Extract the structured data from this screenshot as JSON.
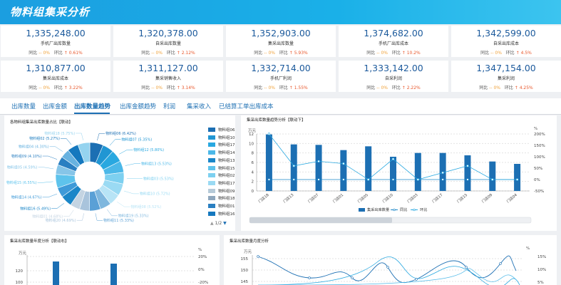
{
  "header": {
    "title": "物料组集采分析"
  },
  "cards": [
    {
      "value": "1,335,248.00",
      "label": "手机厂出库数量",
      "yoy_label": "同比",
      "yoy": "-- 0%",
      "mom_label": "环比",
      "mom": "↑ 0.61%"
    },
    {
      "value": "1,320,378.00",
      "label": "自采出库数量",
      "yoy_label": "同比",
      "yoy": "-- 0%",
      "mom_label": "环比",
      "mom": "↑ 2.12%"
    },
    {
      "value": "1,352,903.00",
      "label": "集采出库数量",
      "yoy_label": "同比",
      "yoy": "-- 0%",
      "mom_label": "环比",
      "mom": "↑ 5.93%"
    },
    {
      "value": "1,374,682.00",
      "label": "手机厂出库成本",
      "yoy_label": "同比",
      "yoy": "-- 0%",
      "mom_label": "环比",
      "mom": "↑ 10.2%"
    },
    {
      "value": "1,342,599.00",
      "label": "自采出库成本",
      "yoy_label": "同比",
      "yoy": "-- 0%",
      "mom_label": "环比",
      "mom": "↑ 4.5%"
    },
    {
      "value": "1,310,877.00",
      "label": "集采出库成本",
      "yoy_label": "同比",
      "yoy": "-- 0%",
      "mom_label": "环比",
      "mom": "↑ 3.22%"
    },
    {
      "value": "1,311,127.00",
      "label": "集采销售收入",
      "yoy_label": "同比",
      "yoy": "-- 0%",
      "mom_label": "环比",
      "mom": "↑ 3.14%"
    },
    {
      "value": "1,332,714.00",
      "label": "手机厂利润",
      "yoy_label": "同比",
      "yoy": "-- 0%",
      "mom_label": "环比",
      "mom": "↑ 1.55%"
    },
    {
      "value": "1,333,142.00",
      "label": "自采利润",
      "yoy_label": "同比",
      "yoy": "-- 0%",
      "mom_label": "环比",
      "mom": "↑ 2.22%"
    },
    {
      "value": "1,347,154.00",
      "label": "集采利润",
      "yoy_label": "同比",
      "yoy": "-- 0%",
      "mom_label": "环比",
      "mom": "↑ 4.25%"
    }
  ],
  "tabs": [
    "出库数量",
    "出库金额",
    "出库数量趋势",
    "出库金额趋势",
    "利润",
    "集采收入",
    "已结算工单出库成本"
  ],
  "active_tab": 2,
  "colors": {
    "accent": "#1c6fb3",
    "bar": "#1c6fb3",
    "line": "#29a8e0"
  },
  "donut": {
    "title": "各物料组集采出库数量占比【联动】",
    "slices": [
      {
        "label": "物料组06 (6.42%)",
        "value": 6.42
      },
      {
        "label": "物料组07 (5.35%)",
        "value": 5.35
      },
      {
        "label": "物料组12 (5.80%)",
        "value": 5.8
      },
      {
        "label": "物料组13 (5.53%)",
        "value": 5.53
      },
      {
        "label": "物料组03 (5.53%)",
        "value": 5.53
      },
      {
        "label": "物料组10 (5.72%)",
        "value": 5.72
      },
      {
        "label": "物料组08 (5.52%)",
        "value": 5.52
      },
      {
        "label": "物料组19 (5.33%)",
        "value": 5.33
      },
      {
        "label": "物料组11 (5.33%)",
        "value": 5.33
      },
      {
        "label": "物料组20 (4.69%)",
        "value": 4.69
      },
      {
        "label": "物料组01 (4.68%)",
        "value": 4.68
      },
      {
        "label": "物料组16 (5.49%)",
        "value": 5.49
      },
      {
        "label": "物料组14 (4.67%)",
        "value": 4.67
      },
      {
        "label": "物料组15 (6.55%)",
        "value": 6.55
      },
      {
        "label": "物料组05 (4.59%)",
        "value": 4.59
      },
      {
        "label": "物料组09 (4.10%)",
        "value": 4.1
      },
      {
        "label": "物料组04 (4.30%)",
        "value": 4.3
      },
      {
        "label": "物料组02 (5.27%)",
        "value": 5.27
      },
      {
        "label": "物料组18 (5.75%)",
        "value": 5.75
      }
    ],
    "legend": [
      "物料组06",
      "物料组10",
      "物料组17",
      "物料组14",
      "物料组13",
      "物料组15",
      "物料组02",
      "物料组17",
      "物料组09",
      "物料组18",
      "物料组01",
      "物料组16"
    ],
    "legend_colors": [
      "#1c6fb3",
      "#2196d3",
      "#29a8e0",
      "#4cb8e8",
      "#1a86c8",
      "#5ec3ec",
      "#7dd0f0",
      "#9adaf3",
      "#b6cad8",
      "#8fa7bd",
      "#2a7fc1",
      "#1578be"
    ],
    "pager": "1/2"
  },
  "bar_chart": {
    "title": "集采出库数量趋势分析【联动下】",
    "categories": [
      "门店18",
      "门店13",
      "门店07",
      "门店01",
      "门店05",
      "门店10",
      "门店03",
      "门店17",
      "门店15",
      "门店09",
      "门店04"
    ],
    "values": [
      11.9,
      9.8,
      9.7,
      8.6,
      9.4,
      7.2,
      8.0,
      8.0,
      7.5,
      6.2,
      5.7
    ],
    "yoy": [
      0,
      0,
      0,
      0,
      0,
      0,
      0,
      0,
      0,
      0,
      0
    ],
    "mom": [
      200,
      60,
      80,
      70,
      0,
      90,
      0,
      30,
      60,
      0,
      0
    ],
    "y_unit": "万元",
    "y_ticks": [
      "12",
      "10",
      "8",
      "6",
      "4",
      "2",
      "0"
    ],
    "y2_unit": "%",
    "y2_ticks": [
      "200%",
      "150%",
      "100%",
      "50%",
      "0%",
      "-50%"
    ],
    "legend": [
      "集采出库数量",
      "同比",
      "环比"
    ]
  },
  "bottom_left": {
    "title": "集采出库数量年度分析【联动右】",
    "y_unit": "万元",
    "y2_unit": "%",
    "y_ticks": [
      "120",
      "100"
    ],
    "y2_ticks": [
      "20%",
      "0%",
      "-20%"
    ]
  },
  "bottom_right": {
    "title": "集采出库数量月度分析",
    "y_unit": "万元",
    "y2_unit": "%",
    "y_ticks": [
      "155",
      "150",
      "145",
      "140"
    ],
    "y2_ticks": [
      "15%",
      "10%",
      "5%",
      "0%"
    ]
  },
  "chart_data": {
    "type": "bar",
    "title": "集采出库数量趋势分析【联动下】",
    "categories": [
      "门店18",
      "门店13",
      "门店07",
      "门店01",
      "门店05",
      "门店10",
      "门店03",
      "门店17",
      "门店15",
      "门店09",
      "门店04"
    ],
    "series": [
      {
        "name": "集采出库数量",
        "values": [
          11.9,
          9.8,
          9.7,
          8.6,
          9.4,
          7.2,
          8.0,
          8.0,
          7.5,
          6.2,
          5.7
        ]
      },
      {
        "name": "同比",
        "values": [
          0,
          0,
          0,
          0,
          0,
          0,
          0,
          0,
          0,
          0,
          0
        ]
      },
      {
        "name": "环比",
        "values": [
          200,
          60,
          80,
          70,
          0,
          90,
          0,
          30,
          60,
          0,
          0
        ]
      }
    ],
    "ylabel": "万元",
    "ylim": [
      0,
      12
    ],
    "y2lim": [
      -50,
      200
    ]
  }
}
